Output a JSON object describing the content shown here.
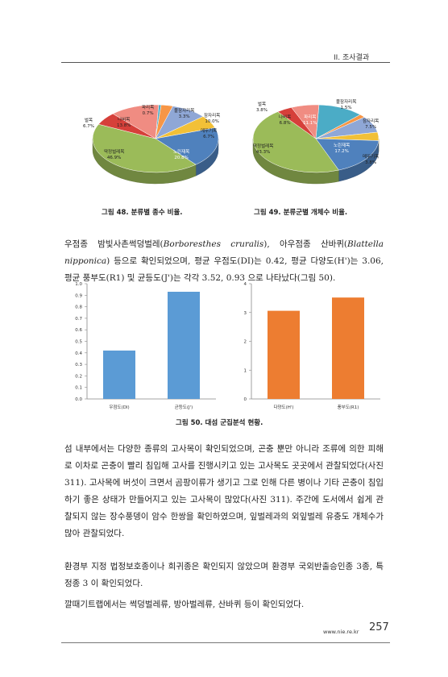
{
  "header": {
    "section_title": "II. 조사결과"
  },
  "figure48": {
    "caption": "그림 48. 분류별 종수 비율.",
    "chart_data": {
      "type": "pie",
      "title": "",
      "slices": [
        {
          "label": "노린재목",
          "value_text": "20.8%",
          "value": 20.8
        },
        {
          "label": "딱정벌레목",
          "value_text": "46.9%",
          "value": 46.9
        },
        {
          "label": "벌목",
          "value_text": "6.7%",
          "value": 6.7
        },
        {
          "label": "나비목",
          "value_text": "13.8%",
          "value": 13.8
        },
        {
          "label": "파리목",
          "value_text": "0.7%",
          "value": 0.7
        },
        {
          "label": "풀잠자리목",
          "value_text": "3.3%",
          "value": 3.3
        },
        {
          "label": "잠자리목",
          "value_text": "10.0%",
          "value": 10.0
        },
        {
          "label": "메뚜기목",
          "value_text": "6.7%",
          "value": 6.7
        }
      ]
    }
  },
  "figure49": {
    "caption": "그림 49. 분류군별 개체수 비율.",
    "chart_data": {
      "type": "pie",
      "title": "",
      "slices": [
        {
          "label": "노린재목",
          "value_text": "17.2%",
          "value": 17.2
        },
        {
          "label": "딱정벌레목",
          "value_text": "43.3%",
          "value": 43.3
        },
        {
          "label": "벌목",
          "value_text": "3.8%",
          "value": 3.8
        },
        {
          "label": "나비목",
          "value_text": "6.8%",
          "value": 6.8
        },
        {
          "label": "파리목",
          "value_text": "11.1%",
          "value": 11.1
        },
        {
          "label": "풀잠자리목",
          "value_text": "1.5%",
          "value": 1.5
        },
        {
          "label": "잠자리목",
          "value_text": "7.5%",
          "value": 7.5
        },
        {
          "label": "메뚜기목",
          "value_text": "3.8%",
          "value": 3.8
        }
      ]
    }
  },
  "colors": {
    "노린재목": "#4f81bd",
    "딱정벌레목": "#9bbb59",
    "벌목": "#d6403a",
    "나비목": "#f08c82",
    "파리목": "#4bacc6",
    "풀잠자리목": "#f79646",
    "잠자리목": "#8fa7d6",
    "메뚜기목": "#f2c037"
  },
  "paragraph1": "우점종 밤빛사촌썩덩벌레(Borboresthes cruralis), 아우점종 산바퀴(Blattella nipponica) 등으로 확인되었으며, 평균 우점도(DI)는 0.42, 평균 다양도(H')는 3.06, 평균 풍부도(R1) 및 균등도(J')는 각각 3.52, 0.93 으로 나타났다(그림 50).",
  "figure50": {
    "caption": "그림 50. 대섬 군집분석 현황.",
    "chart_data": [
      {
        "type": "bar",
        "categories": [
          "우점도(DI)",
          "균등도(J')"
        ],
        "values": [
          0.42,
          0.93
        ],
        "ylim": [
          0,
          1.0
        ],
        "yticks": [
          "0.0",
          "0.1",
          "0.2",
          "0.3",
          "0.4",
          "0.5",
          "0.6",
          "0.7",
          "0.8",
          "0.9",
          "1.0"
        ],
        "color": "#5b9bd5"
      },
      {
        "type": "bar",
        "categories": [
          "다양도(H')",
          "풍부도(R1)"
        ],
        "values": [
          3.06,
          3.52
        ],
        "ylim": [
          0,
          4
        ],
        "yticks": [
          "0",
          "1",
          "2",
          "3",
          "4"
        ],
        "color": "#ed7d31"
      }
    ]
  },
  "paragraph2": "섬 내부에서는 다양한 종류의 고사목이 확인되었으며, 곤충 뿐만 아니라 조류에 의한 피해로 이차로 곤충이 빨리 침입해 고사를 진행시키고 있는 고사목도 곳곳에서 관찰되었다(사진 311). 고사목에 버섯이 크면서 곰팡이류가 생기고 그로 인해 다른 병이나 기타 곤충이 침입하기 좋은 상태가 만들어지고 있는 고사목이 많았다(사진 311). 주간에 도서에서 쉽게 관찰되지 않는 장수풍뎅이 암수 한쌍을 확인하였으며, 잎벌레과의 외잎벌레 유충도 개체수가 많아 관찰되었다.",
  "paragraph3": "환경부 지정 법정보호종이나 희귀종은 확인되지 않았으며 환경부 국외반출승인종 3종, 특정종 3 이 확인되었다.",
  "paragraph4": "깔때기트랩에서는 썩덩벌레류, 방아벌레류, 산바퀴 등이 확인되었다.",
  "footer": {
    "url": "www.nie.re.kr",
    "page_number": "257"
  }
}
